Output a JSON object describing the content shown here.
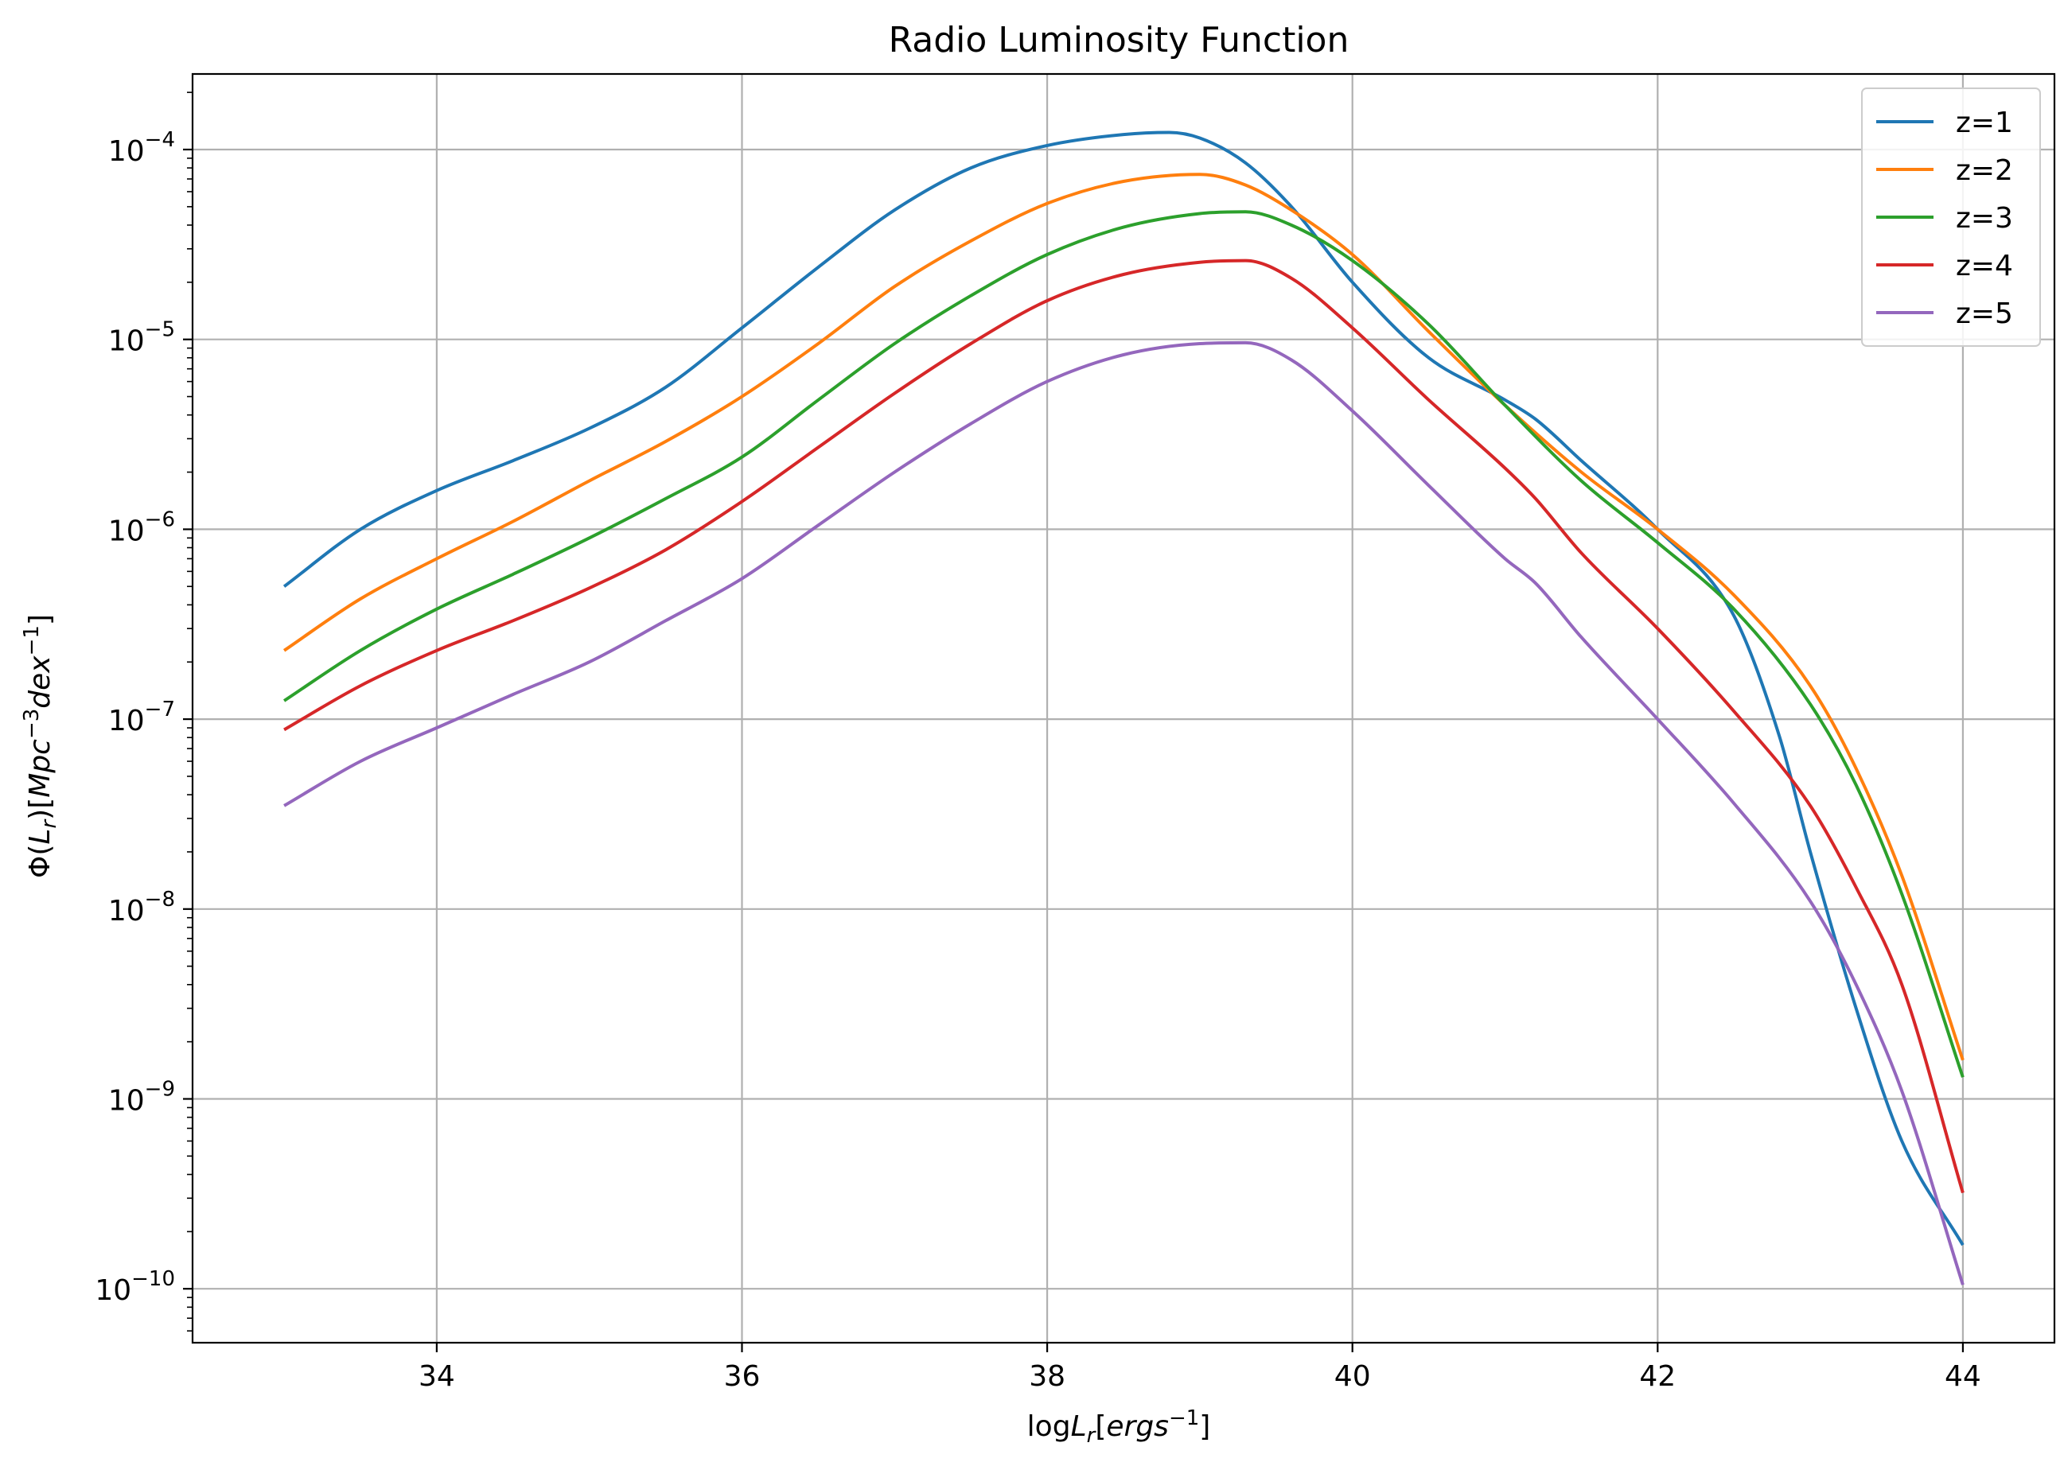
{
  "chart_data": {
    "type": "line",
    "title": "Radio Luminosity Function",
    "xlim": [
      32.4,
      44.6
    ],
    "ylim": [
      5.2e-11,
      0.00025
    ],
    "yscale": "log",
    "grid": true,
    "legend_position": "top-right",
    "xticks": [
      34,
      36,
      38,
      40,
      42,
      44
    ],
    "xtick_labels": [
      "34",
      "36",
      "38",
      "40",
      "42",
      "44"
    ],
    "yticks": [
      -10,
      -9,
      -8,
      -7,
      -6,
      -5,
      -4
    ],
    "ytick_base": "10",
    "ytick_exponents": [
      "−10",
      "−9",
      "−8",
      "−7",
      "−6",
      "−5",
      "−4"
    ],
    "xlabel": {
      "prefix": "log",
      "var": "L",
      "sub": "r",
      "bracket_open": "[",
      "unit": "ergs",
      "unit_exp": "−1",
      "bracket_close": "]"
    },
    "ylabel": {
      "phi": "Φ(",
      "var": "L",
      "sub": "r",
      "mid": ")[",
      "unit1": "Mpc",
      "exp1": "−3",
      "unit2": "dex",
      "exp2": "−1",
      "close": "]"
    },
    "series": [
      {
        "name": "z=1",
        "color": "#1f77b4",
        "x": [
          33,
          33.5,
          34,
          34.5,
          35,
          35.5,
          36,
          36.5,
          37,
          37.5,
          38,
          38.5,
          38.8,
          39,
          39.3,
          39.6,
          40,
          40.5,
          41,
          41.2,
          41.5,
          42,
          42.5,
          42.8,
          43,
          43.3,
          43.6,
          44
        ],
        "y": [
          5e-07,
          1e-06,
          1.6e-06,
          2.3e-06,
          3.4e-06,
          5.6e-06,
          1.15e-05,
          2.4e-05,
          4.8e-05,
          8e-05,
          0.000105,
          0.00012,
          0.000123,
          0.000115,
          8.5e-05,
          5e-05,
          2e-05,
          8e-06,
          4.8e-06,
          3.8e-06,
          2.3e-06,
          1e-06,
          3.5e-07,
          8e-08,
          2e-08,
          3e-09,
          6e-10,
          1.7e-10
        ]
      },
      {
        "name": "z=2",
        "color": "#ff7f0e",
        "x": [
          33,
          33.5,
          34,
          34.5,
          35,
          35.5,
          36,
          36.5,
          37,
          37.5,
          38,
          38.5,
          39,
          39.3,
          39.6,
          40,
          40.5,
          41,
          41.5,
          42,
          42.5,
          43,
          43.3,
          43.6,
          44
        ],
        "y": [
          2.3e-07,
          4.3e-07,
          7e-07,
          1.1e-06,
          1.8e-06,
          2.9e-06,
          5e-06,
          9.5e-06,
          1.9e-05,
          3.3e-05,
          5.2e-05,
          6.8e-05,
          7.4e-05,
          6.5e-05,
          4.8e-05,
          2.8e-05,
          1.1e-05,
          4.5e-06,
          2e-06,
          1e-06,
          4.5e-07,
          1.5e-07,
          5.5e-08,
          1.5e-08,
          1.6e-09
        ]
      },
      {
        "name": "z=3",
        "color": "#2ca02c",
        "x": [
          33,
          33.5,
          34,
          34.5,
          35,
          35.5,
          36,
          36.5,
          37,
          37.5,
          38,
          38.5,
          39,
          39.3,
          39.6,
          40,
          40.5,
          41,
          41.5,
          42,
          42.5,
          43,
          43.3,
          43.6,
          44
        ],
        "y": [
          1.25e-07,
          2.3e-07,
          3.8e-07,
          5.8e-07,
          9e-07,
          1.45e-06,
          2.4e-06,
          4.8e-06,
          9.5e-06,
          1.7e-05,
          2.8e-05,
          3.9e-05,
          4.6e-05,
          4.7e-05,
          4e-05,
          2.6e-05,
          1.2e-05,
          4.5e-06,
          1.8e-06,
          8.5e-07,
          3.8e-07,
          1.2e-07,
          4.5e-08,
          1.2e-08,
          1.3e-09
        ]
      },
      {
        "name": "z=4",
        "color": "#d62728",
        "x": [
          33,
          33.5,
          34,
          34.5,
          35,
          35.5,
          36,
          36.5,
          37,
          37.5,
          38,
          38.5,
          39,
          39.3,
          39.6,
          40,
          40.5,
          41,
          41.2,
          41.5,
          42,
          42.5,
          43,
          43.3,
          43.6,
          44
        ],
        "y": [
          8.8e-08,
          1.5e-07,
          2.3e-07,
          3.3e-07,
          4.9e-07,
          7.8e-07,
          1.4e-06,
          2.7e-06,
          5.2e-06,
          9.5e-06,
          1.6e-05,
          2.2e-05,
          2.55e-05,
          2.6e-05,
          2.1e-05,
          1.15e-05,
          4.8e-06,
          2.1e-06,
          1.45e-06,
          7.5e-07,
          3e-07,
          1.1e-07,
          3.5e-08,
          1.3e-08,
          4e-09,
          3.2e-10
        ]
      },
      {
        "name": "z=5",
        "color": "#9467bd",
        "x": [
          33,
          33.5,
          34,
          34.5,
          35,
          35.5,
          36,
          36.5,
          37,
          37.5,
          38,
          38.5,
          39,
          39.3,
          39.6,
          40,
          40.5,
          41,
          41.2,
          41.5,
          42,
          42.5,
          43,
          43.3,
          43.6,
          44
        ],
        "y": [
          3.5e-08,
          6e-08,
          9e-08,
          1.35e-07,
          2e-07,
          3.3e-07,
          5.5e-07,
          1.05e-06,
          2e-06,
          3.6e-06,
          6e-06,
          8.3e-06,
          9.5e-06,
          9.6e-06,
          7.8e-06,
          4.2e-06,
          1.7e-06,
          7e-07,
          5.2e-07,
          2.7e-07,
          1e-07,
          3.6e-08,
          1.1e-08,
          4e-09,
          1.1e-09,
          1.05e-10
        ]
      }
    ]
  }
}
